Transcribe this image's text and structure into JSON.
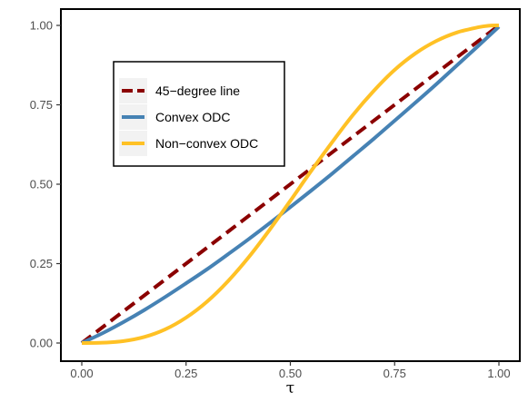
{
  "chart_data": {
    "type": "line",
    "title": "",
    "xlabel": "τ",
    "ylabel": "",
    "xlim": [
      0,
      1
    ],
    "ylim": [
      0,
      1
    ],
    "x_ticks": [
      "0.00",
      "0.25",
      "0.50",
      "0.75",
      "1.00"
    ],
    "y_ticks": [
      "0.00",
      "0.25",
      "0.50",
      "0.75",
      "1.00"
    ],
    "grid": false,
    "legend_position": "upper-left inside",
    "series": [
      {
        "name": "45−degree line",
        "color": "#8b0000",
        "style": "dashed",
        "x": [
          0,
          1
        ],
        "y": [
          0,
          1
        ]
      },
      {
        "name": "Convex ODC",
        "color": "#4682b4",
        "style": "solid",
        "x": [
          0,
          0.05,
          0.1,
          0.15,
          0.2,
          0.25,
          0.3,
          0.35,
          0.4,
          0.45,
          0.5,
          0.55,
          0.6,
          0.65,
          0.7,
          0.75,
          0.8,
          0.85,
          0.9,
          0.95,
          1.0
        ],
        "y": [
          0,
          0.031,
          0.066,
          0.104,
          0.145,
          0.188,
          0.232,
          0.279,
          0.327,
          0.377,
          0.428,
          0.48,
          0.533,
          0.588,
          0.643,
          0.7,
          0.757,
          0.815,
          0.875,
          0.935,
          0.996
        ]
      },
      {
        "name": "Non−convex ODC",
        "color": "#ffc125",
        "style": "solid",
        "x": [
          0,
          0.05,
          0.1,
          0.15,
          0.2,
          0.25,
          0.3,
          0.35,
          0.4,
          0.45,
          0.5,
          0.55,
          0.6,
          0.65,
          0.7,
          0.75,
          0.8,
          0.85,
          0.9,
          0.95,
          0.975,
          1.0
        ],
        "y": [
          0,
          0.001,
          0.006,
          0.019,
          0.043,
          0.08,
          0.13,
          0.194,
          0.27,
          0.356,
          0.448,
          0.542,
          0.632,
          0.718,
          0.794,
          0.86,
          0.912,
          0.951,
          0.978,
          0.994,
          0.999,
          1.0
        ]
      }
    ]
  }
}
